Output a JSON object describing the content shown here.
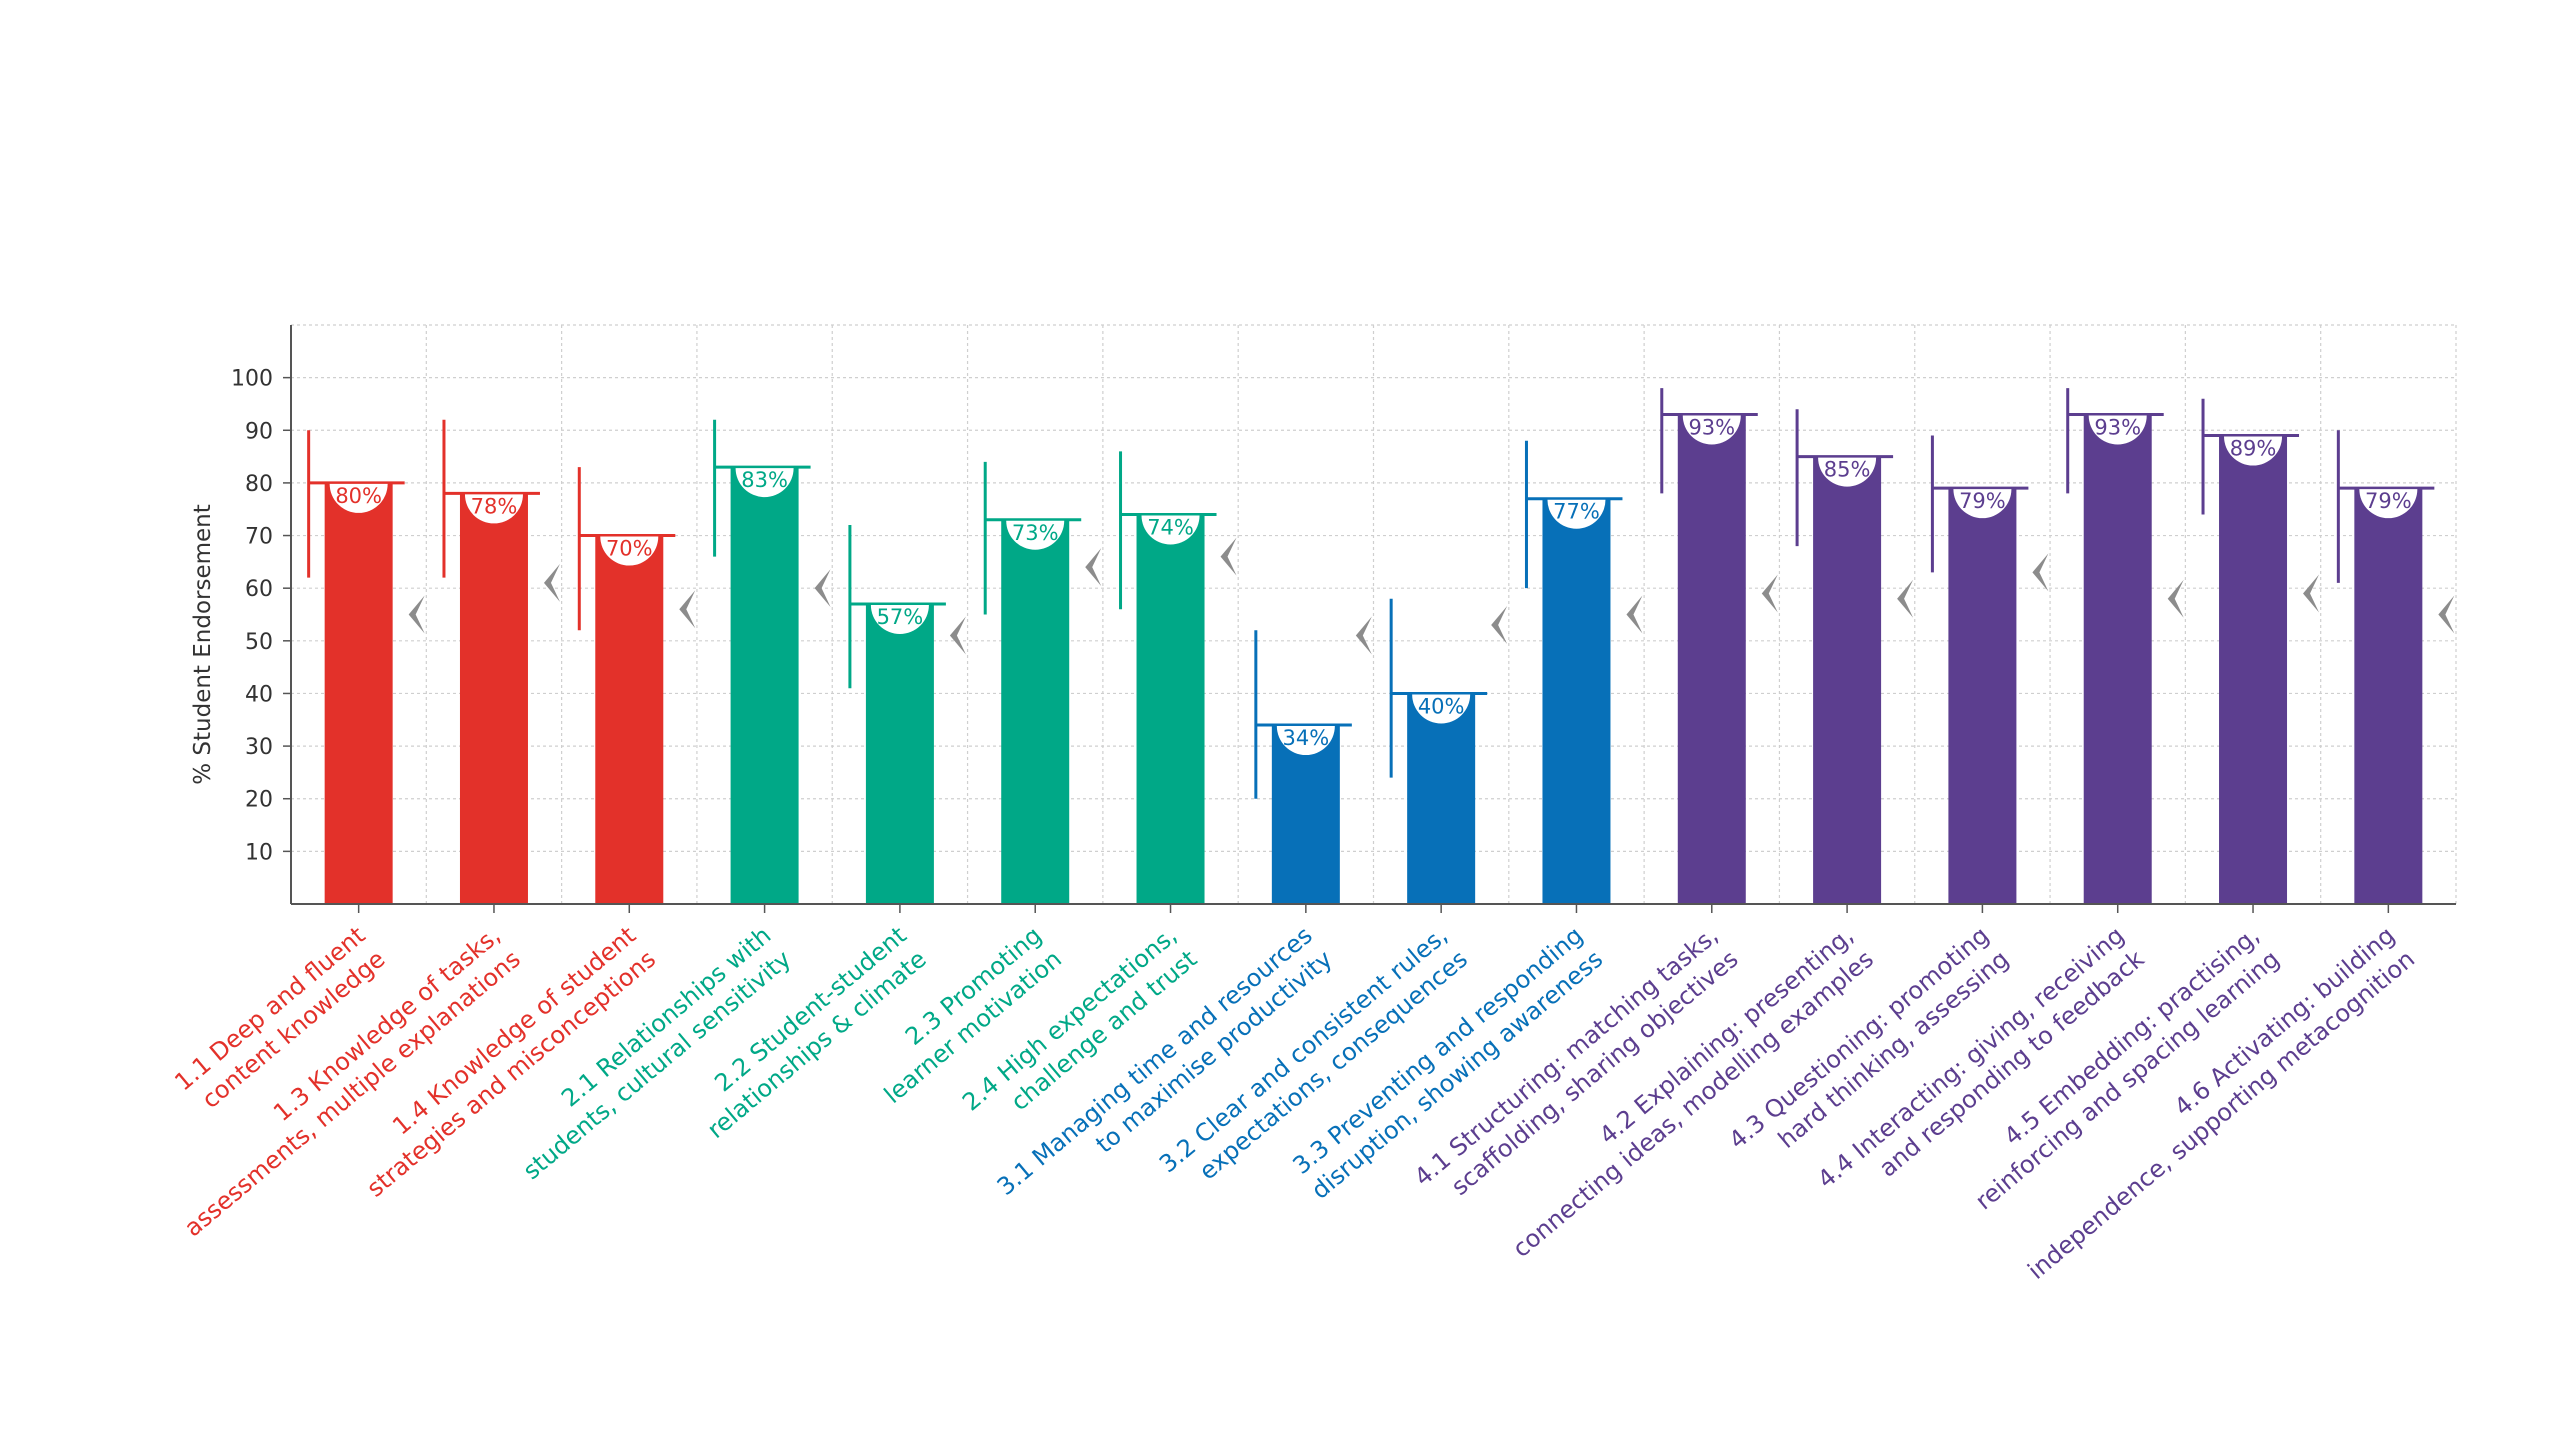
{
  "chart_data": {
    "type": "bar",
    "title": "",
    "xlabel": "",
    "ylabel": "% Student Endorsement",
    "ylim": [
      0,
      110
    ],
    "yticks": [
      10,
      20,
      30,
      40,
      50,
      60,
      70,
      80,
      90,
      100
    ],
    "grid": true,
    "legend": "none",
    "group_colors": {
      "1": "#e3312a",
      "2": "#00a887",
      "3": "#0770b8",
      "4": "#5c3e8f"
    },
    "marker_color": "#8c8c8c",
    "categories": [
      {
        "label": "1.1 Deep and fluent content knowledge",
        "group": "1",
        "value": 80,
        "value_label": "80%",
        "err": [
          62,
          90
        ],
        "marker": 55
      },
      {
        "label": "1.3 Knowledge of tasks, assessments, multiple explanations",
        "group": "1",
        "value": 78,
        "value_label": "78%",
        "err": [
          62,
          92
        ],
        "marker": 61
      },
      {
        "label": "1.4 Knowledge of student strategies and misconceptions",
        "group": "1",
        "value": 70,
        "value_label": "70%",
        "err": [
          52,
          83
        ],
        "marker": 56
      },
      {
        "label": "2.1 Relationships with students, cultural sensitivity",
        "group": "2",
        "value": 83,
        "value_label": "83%",
        "err": [
          66,
          92
        ],
        "marker": 60
      },
      {
        "label": "2.2 Student-student relationships & climate",
        "group": "2",
        "value": 57,
        "value_label": "57%",
        "err": [
          41,
          72
        ],
        "marker": 51
      },
      {
        "label": "2.3 Promoting learner motivation",
        "group": "2",
        "value": 73,
        "value_label": "73%",
        "err": [
          55,
          84
        ],
        "marker": 64
      },
      {
        "label": "2.4 High expectations, challenge and trust",
        "group": "2",
        "value": 74,
        "value_label": "74%",
        "err": [
          56,
          86
        ],
        "marker": 66
      },
      {
        "label": "3.1 Managing time and resources to maximise productivity",
        "group": "3",
        "value": 34,
        "value_label": "34%",
        "err": [
          20,
          52
        ],
        "marker": 51
      },
      {
        "label": "3.2 Clear and consistent rules, expectations, consequences",
        "group": "3",
        "value": 40,
        "value_label": "40%",
        "err": [
          24,
          58
        ],
        "marker": 53
      },
      {
        "label": "3.3 Preventing and responding disruption, showing awareness",
        "group": "3",
        "value": 77,
        "value_label": "77%",
        "err": [
          60,
          88
        ],
        "marker": 55
      },
      {
        "label": "4.1 Structuring: matching tasks, scaffolding, sharing objectives",
        "group": "4",
        "value": 93,
        "value_label": "93%",
        "err": [
          78,
          98
        ],
        "marker": 59
      },
      {
        "label": "4.2 Explaining: presenting, connecting ideas, modelling examples",
        "group": "4",
        "value": 85,
        "value_label": "85%",
        "err": [
          68,
          94
        ],
        "marker": 58
      },
      {
        "label": "4.3 Questioning: promoting hard thinking, assessing",
        "group": "4",
        "value": 79,
        "value_label": "79%",
        "err": [
          63,
          89
        ],
        "marker": 63
      },
      {
        "label": "4.4 Interacting: giving, receiving and responding to feedback",
        "group": "4",
        "value": 93,
        "value_label": "93%",
        "err": [
          78,
          98
        ],
        "marker": 58
      },
      {
        "label": "4.5 Embedding: practising, reinforcing and spacing learning",
        "group": "4",
        "value": 89,
        "value_label": "89%",
        "err": [
          74,
          96
        ],
        "marker": 59
      },
      {
        "label": "4.6 Activating: building independence, supporting metacognition",
        "group": "4",
        "value": 79,
        "value_label": "79%",
        "err": [
          61,
          90
        ],
        "marker": 55
      }
    ]
  }
}
